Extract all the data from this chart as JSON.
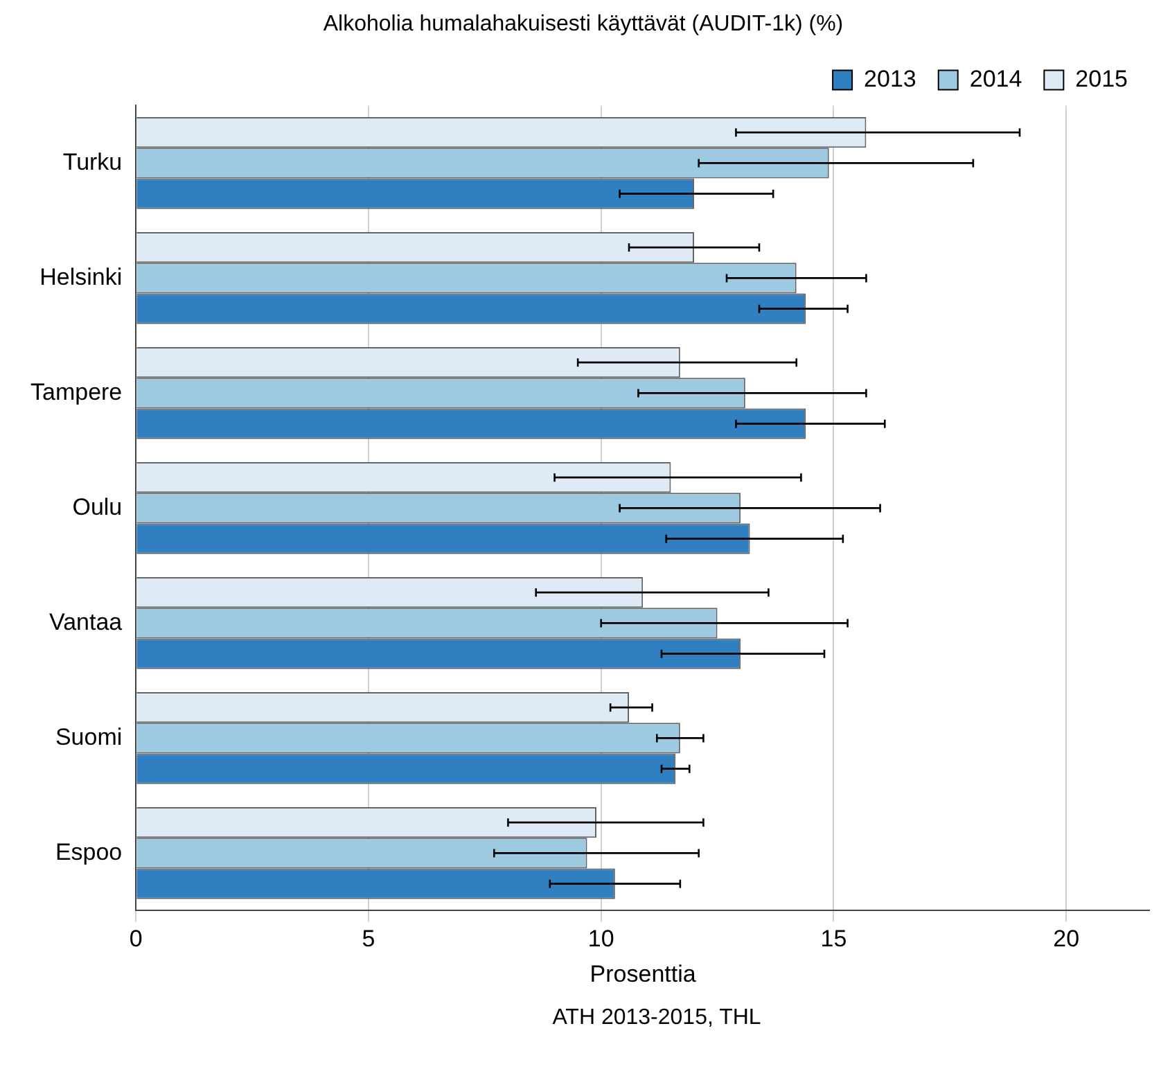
{
  "chart_data": {
    "type": "bar",
    "orientation": "horizontal",
    "title": "Alkoholia humalahakuisesti käyttävät (AUDIT-1k) (%)",
    "xlabel": "Prosenttia",
    "annotations": [
      "ATH 2013-2015, THL"
    ],
    "categories": [
      "Turku",
      "Helsinki",
      "Tampere",
      "Oulu",
      "Vantaa",
      "Suomi",
      "Espoo"
    ],
    "series": [
      {
        "name": "2013",
        "color": "#2f7fc1",
        "values": [
          12.0,
          14.4,
          14.4,
          13.2,
          13.0,
          11.6,
          10.3
        ],
        "errors": [
          [
            10.4,
            13.7
          ],
          [
            13.4,
            15.3
          ],
          [
            12.9,
            16.1
          ],
          [
            11.4,
            15.2
          ],
          [
            11.3,
            14.8
          ],
          [
            11.3,
            11.9
          ],
          [
            8.9,
            11.7
          ]
        ]
      },
      {
        "name": "2014",
        "color": "#9ecae1",
        "values": [
          14.9,
          14.2,
          13.1,
          13.0,
          12.5,
          11.7,
          9.7
        ],
        "errors": [
          [
            12.1,
            18.0
          ],
          [
            12.7,
            15.7
          ],
          [
            10.8,
            15.7
          ],
          [
            10.4,
            16.0
          ],
          [
            10.0,
            15.3
          ],
          [
            11.2,
            12.2
          ],
          [
            7.7,
            12.1
          ]
        ]
      },
      {
        "name": "2015",
        "color": "#deebf7",
        "values": [
          15.7,
          12.0,
          11.7,
          11.5,
          10.9,
          10.6,
          9.9
        ],
        "errors": [
          [
            12.9,
            19.0
          ],
          [
            10.6,
            13.4
          ],
          [
            9.5,
            14.2
          ],
          [
            9.0,
            14.3
          ],
          [
            8.6,
            13.6
          ],
          [
            10.2,
            11.1
          ],
          [
            8.0,
            12.2
          ]
        ]
      }
    ],
    "xlim": [
      0,
      21.8
    ],
    "xticks": [
      0,
      5,
      10,
      15,
      20
    ],
    "grid": "x",
    "legend": "top right"
  }
}
